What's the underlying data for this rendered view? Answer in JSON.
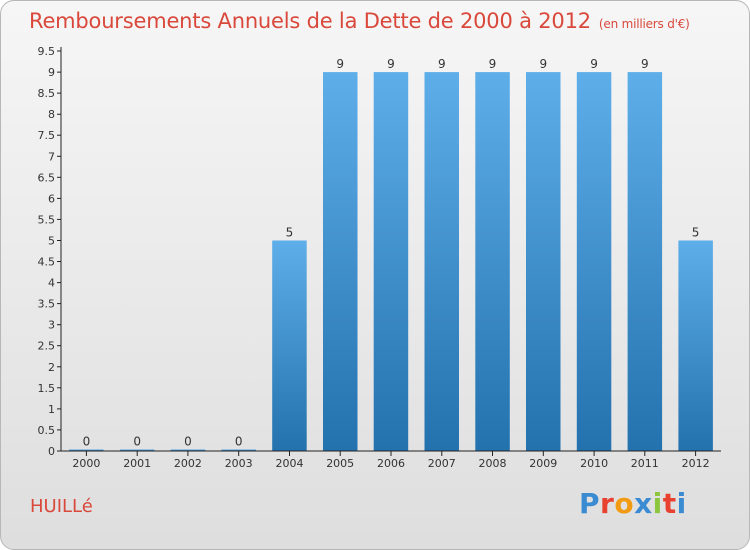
{
  "title": "Remboursements Annuels de la Dette de 2000 à 2012",
  "subtitle": "(en milliers d'€)",
  "commune": "HUILLé",
  "logo": {
    "text": "Proxiti",
    "letter_colors": [
      "#3b8bd3",
      "#e8412f",
      "#f29b11",
      "#3b8bd3",
      "#8cc63f",
      "#e8412f",
      "#3b8bd3"
    ]
  },
  "colors": {
    "title": "#d9483b",
    "bar_top": "#5eaeea",
    "bar_bottom": "#2372ae",
    "axis": "#222222"
  },
  "chart_data": {
    "type": "bar",
    "categories": [
      "2000",
      "2001",
      "2002",
      "2003",
      "2004",
      "2005",
      "2006",
      "2007",
      "2008",
      "2009",
      "2010",
      "2011",
      "2012"
    ],
    "values": [
      0,
      0,
      0,
      0,
      5,
      9,
      9,
      9,
      9,
      9,
      9,
      9,
      5
    ],
    "data_labels": [
      "0",
      "0",
      "0",
      "0",
      "5",
      "9",
      "9",
      "9",
      "9",
      "9",
      "9",
      "9",
      "5"
    ],
    "title": "Remboursements Annuels de la Dette de 2000 à 2012",
    "subtitle": "(en milliers d'€)",
    "xlabel": "",
    "ylabel": "",
    "ylim": [
      0,
      9.5
    ],
    "yticks": [
      0,
      0.5,
      1,
      1.5,
      2,
      2.5,
      3,
      3.5,
      4,
      4.5,
      5,
      5.5,
      6,
      6.5,
      7,
      7.5,
      8,
      8.5,
      9,
      9.5
    ],
    "ytick_labels": [
      "0",
      "0.5",
      "1",
      "1.5",
      "2",
      "2.5",
      "3",
      "3.5",
      "4",
      "4.5",
      "5",
      "5.5",
      "6",
      "6.5",
      "7",
      "7.5",
      "8",
      "8.5",
      "9",
      "9.5"
    ],
    "grid": false,
    "legend": "none"
  }
}
